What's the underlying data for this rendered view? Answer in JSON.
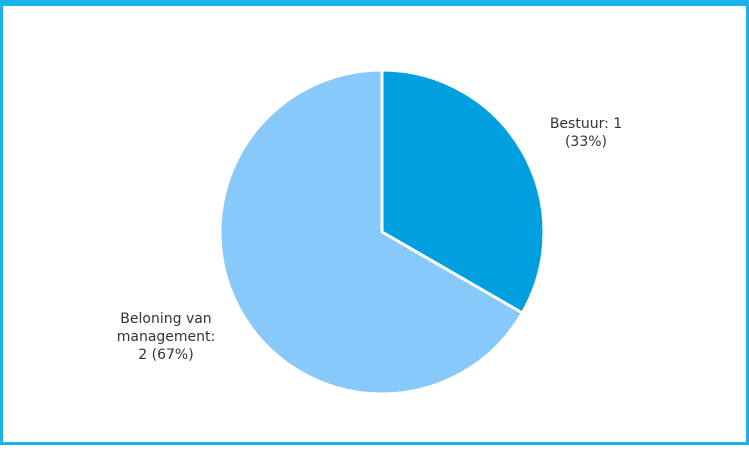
{
  "chart_data": {
    "type": "pie",
    "slices": [
      {
        "label_lines": [
          "Bestuur: 1",
          "(33%)"
        ],
        "value": 1,
        "percent": 33,
        "color": "#009fdf"
      },
      {
        "label_lines": [
          "Beloning van",
          "management:",
          "2 (67%)"
        ],
        "value": 2,
        "percent": 67,
        "color": "#86c9fa"
      }
    ],
    "start_angle_deg": 0,
    "direction": "clockwise",
    "slice_border_color": "#ffffff",
    "frame_color": "#1ab2ea"
  }
}
